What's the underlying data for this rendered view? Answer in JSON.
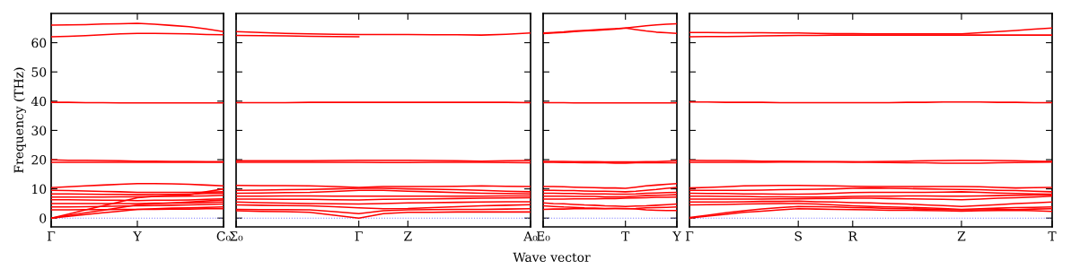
{
  "chart_data": [
    {
      "type": "line",
      "ylabel": "Frequency (THz)",
      "ylim": [
        -3,
        70
      ],
      "yticks": [
        0,
        10,
        20,
        30,
        40,
        50,
        60
      ],
      "legend": false,
      "grid": false,
      "categories": [
        "Γ",
        null,
        null,
        null,
        null,
        "Y",
        null,
        null,
        null,
        null,
        "C₀"
      ],
      "ref_lines": [
        {
          "axis": "y",
          "value": 0,
          "color": "#7777ff",
          "line_style": "dotted"
        }
      ],
      "series": [
        {
          "color": "#ff0000",
          "values": [
            66,
            66.1,
            66.2,
            66.4,
            66.5,
            66.6,
            66.3,
            65.9,
            65.5,
            64.7,
            63.8
          ]
        },
        {
          "color": "#ff0000",
          "values": [
            62,
            62.2,
            62.4,
            62.7,
            63,
            63.2,
            63.2,
            63.1,
            63,
            62.8,
            62.7
          ]
        },
        {
          "color": "#ff0000",
          "values": [
            39.6,
            39.6,
            39.5,
            39.5,
            39.4,
            39.4,
            39.4,
            39.4,
            39.4,
            39.4,
            39.4
          ]
        },
        {
          "color": "#ff0000",
          "values": [
            19.9,
            19.8,
            19.8,
            19.7,
            19.6,
            19.5,
            19.5,
            19.4,
            19.4,
            19.3,
            19.3
          ]
        },
        {
          "color": "#ff0000",
          "values": [
            19.1,
            19.1,
            19.1,
            19.1,
            19.1,
            19.1,
            19.1,
            19.1,
            19.1,
            19.1,
            19.1
          ]
        },
        {
          "color": "#ff0000",
          "values": [
            10.4,
            10.7,
            11,
            11.3,
            11.6,
            11.8,
            11.8,
            11.7,
            11.6,
            11.3,
            11
          ]
        },
        {
          "color": "#ff0000",
          "values": [
            9.5,
            9.4,
            9.3,
            9.1,
            9,
            8.8,
            8.8,
            8.8,
            8.8,
            8.9,
            9
          ]
        },
        {
          "color": "#ff0000",
          "values": [
            8.3,
            8.3,
            8.2,
            8.1,
            8.1,
            8,
            8.1,
            8.1,
            8.2,
            8.4,
            8.5
          ]
        },
        {
          "color": "#ff0000",
          "values": [
            7.2,
            7.2,
            7.2,
            7.2,
            7.3,
            7.3,
            7.4,
            7.4,
            7.5,
            7.6,
            7.8
          ]
        },
        {
          "color": "#ff0000",
          "values": [
            6.3,
            6.3,
            6.2,
            6.1,
            6.1,
            6,
            6.1,
            6.1,
            6.2,
            6.4,
            6.6
          ]
        },
        {
          "color": "#ff0000",
          "values": [
            5,
            5,
            5,
            5,
            5,
            5,
            5.1,
            5.1,
            5.2,
            5.4,
            5.5
          ]
        },
        {
          "color": "#ff0000",
          "values": [
            3.8,
            3.8,
            3.9,
            4,
            4.1,
            4.2,
            4.3,
            4.4,
            4.5,
            4.7,
            4.8
          ]
        },
        {
          "color": "#ff0000",
          "values": [
            2.8,
            2.8,
            2.9,
            2.9,
            3,
            3,
            3,
            3.1,
            3.1,
            3.2,
            3.2
          ]
        },
        {
          "color": "#ff0000",
          "values": [
            0,
            0.6,
            1.2,
            1.8,
            2.4,
            3,
            3.2,
            3.4,
            3.5,
            3.7,
            3.8
          ]
        },
        {
          "color": "#ff0000",
          "values": [
            0,
            0.9,
            1.8,
            2.7,
            3.6,
            4.5,
            4.9,
            5.2,
            5.5,
            5.9,
            6.2
          ]
        },
        {
          "color": "#ff0000",
          "values": [
            0,
            1.4,
            2.8,
            4.2,
            5.6,
            7,
            7.4,
            7.8,
            8,
            9,
            10
          ]
        }
      ]
    },
    {
      "type": "line",
      "xlabel": "Wave vector",
      "tick_labels": "x",
      "ylim": [
        -3,
        70
      ],
      "yticks": [
        0,
        10,
        20,
        30,
        40,
        50,
        60
      ],
      "legend": false,
      "grid": false,
      "categories": [
        "Σ₀",
        null,
        null,
        null,
        null,
        "Γ",
        null,
        "Z",
        null,
        null,
        null,
        null,
        "A₀"
      ],
      "ref_lines": [
        {
          "axis": "y",
          "value": 0,
          "color": "#7777ff",
          "line_style": "dotted"
        }
      ],
      "series": [
        {
          "color": "#ff0000",
          "values": [
            63.8,
            63.5,
            63.2,
            63,
            62.9,
            62.8,
            62.8,
            62.8,
            62.7,
            62.7,
            62.6,
            62.9,
            63.3
          ]
        },
        {
          "color": "#ff0000",
          "values": [
            62.5,
            62.4,
            62.3,
            62.2,
            62.1,
            62,
            null,
            null,
            null,
            null,
            null,
            null,
            null
          ]
        },
        {
          "color": "#ff0000",
          "values": [
            39.5,
            39.5,
            39.5,
            39.6,
            39.6,
            39.6,
            39.6,
            39.6,
            39.6,
            39.6,
            39.6,
            39.6,
            39.5
          ]
        },
        {
          "color": "#ff0000",
          "values": [
            19.6,
            19.6,
            19.6,
            19.6,
            19.7,
            19.8,
            19.8,
            19.8,
            19.7,
            19.6,
            19.5,
            19.6,
            19.7
          ]
        },
        {
          "color": "#ff0000",
          "values": [
            19.1,
            19.1,
            19.1,
            19.1,
            19.1,
            19.1,
            19,
            19,
            19.1,
            19.1,
            19.1,
            19,
            18.9
          ]
        },
        {
          "color": "#ff0000",
          "values": [
            11.2,
            11.1,
            11.1,
            11,
            10.8,
            10.5,
            10.8,
            10.8,
            10.8,
            10.9,
            11,
            10.9,
            10.8
          ]
        },
        {
          "color": "#ff0000",
          "values": [
            9.5,
            9.6,
            9.7,
            9.8,
            10,
            10.2,
            10.2,
            10,
            9.9,
            9.7,
            9.5,
            9.2,
            9
          ]
        },
        {
          "color": "#ff0000",
          "values": [
            8.5,
            8.6,
            8.7,
            8.8,
            9.1,
            9.5,
            9.5,
            9.2,
            9,
            8.7,
            8.5,
            8.4,
            8.3
          ]
        },
        {
          "color": "#ff0000",
          "values": [
            7.5,
            7.5,
            7.6,
            7.6,
            7.5,
            7.5,
            7.5,
            7.5,
            7.5,
            7.5,
            7.5,
            7.6,
            7.6
          ]
        },
        {
          "color": "#ff0000",
          "values": [
            6.5,
            6.5,
            6.4,
            6.4,
            6.3,
            6.2,
            6.4,
            6.5,
            6.6,
            6.7,
            6.8,
            6.9,
            7
          ]
        },
        {
          "color": "#ff0000",
          "values": [
            5.5,
            5.3,
            5.1,
            5,
            4.9,
            4.8,
            5,
            5.2,
            5.3,
            5.4,
            5.5,
            5.6,
            5.6
          ]
        },
        {
          "color": "#ff0000",
          "values": [
            4.5,
            4.4,
            4.3,
            4.2,
            3.9,
            3.5,
            3.2,
            3.3,
            3.6,
            3.9,
            4.2,
            4.4,
            4.6
          ]
        },
        {
          "color": "#ff0000",
          "values": [
            3,
            2.9,
            2.9,
            2.8,
            2.2,
            1.5,
            2.5,
            2.8,
            2.9,
            3,
            3,
            3.1,
            3.2
          ]
        },
        {
          "color": "#ff0000",
          "values": [
            2.5,
            2.3,
            2.2,
            2,
            1,
            0,
            1.5,
            2,
            2,
            2.1,
            2.1,
            2.1,
            2.1
          ]
        }
      ]
    },
    {
      "type": "line",
      "tick_labels": "x",
      "ylim": [
        -3,
        70
      ],
      "yticks": [
        0,
        10,
        20,
        30,
        40,
        50,
        60
      ],
      "legend": false,
      "grid": false,
      "categories": [
        "E₀",
        null,
        null,
        null,
        null,
        null,
        null,
        null,
        "T",
        null,
        null,
        null,
        null,
        "Y"
      ],
      "ref_lines": [
        {
          "axis": "y",
          "value": 0,
          "color": "#7777ff",
          "line_style": "dotted"
        }
      ],
      "series": [
        {
          "color": "#ff0000",
          "values": [
            63.3,
            63.5,
            63.7,
            64,
            64.2,
            64.4,
            64.6,
            64.8,
            65,
            65.4,
            65.8,
            66.1,
            66.3,
            66.5
          ]
        },
        {
          "color": "#ff0000",
          "values": [
            63.1,
            63.3,
            63.5,
            63.8,
            64,
            64.2,
            64.4,
            64.6,
            65,
            64.5,
            64,
            63.6,
            63.4,
            63.2
          ]
        },
        {
          "color": "#ff0000",
          "values": [
            39.5,
            39.5,
            39.5,
            39.4,
            39.4,
            39.4,
            39.4,
            39.4,
            39.4,
            39.4,
            39.4,
            39.4,
            39.4,
            39.4
          ]
        },
        {
          "color": "#ff0000",
          "values": [
            19.4,
            19.4,
            19.4,
            19.3,
            19.3,
            19.3,
            19.2,
            19.2,
            19.2,
            19.2,
            19.3,
            19.3,
            19.5,
            19.6
          ]
        },
        {
          "color": "#ff0000",
          "values": [
            19.1,
            19.1,
            19,
            19,
            18.9,
            18.9,
            18.9,
            18.8,
            18.8,
            18.9,
            18.9,
            19,
            18.9,
            18.9
          ]
        },
        {
          "color": "#ff0000",
          "values": [
            10.8,
            10.8,
            10.7,
            10.6,
            10.5,
            10.4,
            10.3,
            10.3,
            10.2,
            10.6,
            11,
            11.3,
            11.6,
            11.8
          ]
        },
        {
          "color": "#ff0000",
          "values": [
            9.5,
            9.5,
            9.4,
            9.4,
            9.3,
            9.2,
            9.2,
            9.1,
            9,
            9.2,
            9.5,
            9.8,
            10.2,
            10.5
          ]
        },
        {
          "color": "#ff0000",
          "values": [
            8.5,
            8.5,
            8.4,
            8.4,
            8.3,
            8.3,
            8.3,
            8.2,
            8.2,
            8.3,
            8.5,
            8.6,
            8.7,
            8.8
          ]
        },
        {
          "color": "#ff0000",
          "values": [
            7.5,
            7.5,
            7.5,
            7.4,
            7.4,
            7.4,
            7.3,
            7.3,
            7.3,
            7.5,
            7.7,
            7.8,
            7.9,
            8
          ]
        },
        {
          "color": "#ff0000",
          "values": [
            6.5,
            6.5,
            6.5,
            6.6,
            6.6,
            6.6,
            6.7,
            6.7,
            6.8,
            6.9,
            7,
            7.1,
            7.1,
            7.2
          ]
        },
        {
          "color": "#ff0000",
          "values": [
            5.2,
            5,
            4.9,
            4.7,
            4.5,
            4.4,
            4.2,
            4.1,
            4,
            4.1,
            4.2,
            4.4,
            4.6,
            4.8
          ]
        },
        {
          "color": "#ff0000",
          "values": [
            4.2,
            4,
            3.8,
            3.7,
            3.5,
            3.4,
            3.3,
            3.3,
            3.2,
            3.3,
            3.5,
            3.6,
            3.7,
            3.8
          ]
        },
        {
          "color": "#ff0000",
          "values": [
            3,
            3.1,
            3.1,
            3.2,
            3.2,
            3.2,
            3.2,
            3.3,
            3.3,
            3.1,
            2.8,
            2.7,
            2.6,
            2.6
          ]
        }
      ]
    },
    {
      "type": "line",
      "tick_labels": "x",
      "ylim": [
        -3,
        70
      ],
      "yticks": [
        0,
        10,
        20,
        30,
        40,
        50,
        60
      ],
      "legend": false,
      "grid": false,
      "categories": [
        "Γ",
        null,
        null,
        null,
        null,
        null,
        "S",
        null,
        null,
        "R",
        null,
        null,
        null,
        null,
        null,
        "Z",
        null,
        null,
        null,
        null,
        "T"
      ],
      "ref_lines": [
        {
          "axis": "y",
          "value": 0,
          "color": "#7777ff",
          "line_style": "dotted"
        }
      ],
      "series": [
        {
          "color": "#ff0000",
          "values": [
            63.5,
            63.5,
            63.4,
            63.4,
            63.4,
            63.3,
            63.3,
            63.2,
            63.1,
            63.1,
            63,
            63,
            63,
            63,
            63,
            63,
            63.4,
            63.8,
            64.2,
            64.6,
            65
          ]
        },
        {
          "color": "#ff0000",
          "values": [
            62,
            62.1,
            62.1,
            62.2,
            62.3,
            62.4,
            62.5,
            62.5,
            62.6,
            62.6,
            62.6,
            62.6,
            62.6,
            62.6,
            62.6,
            62.6,
            62.6,
            62.6,
            62.6,
            62.6,
            62.6
          ]
        },
        {
          "color": "#ff0000",
          "values": [
            39.7,
            39.7,
            39.6,
            39.6,
            39.6,
            39.5,
            39.5,
            39.5,
            39.5,
            39.5,
            39.5,
            39.5,
            39.6,
            39.6,
            39.7,
            39.7,
            39.7,
            39.6,
            39.6,
            39.5,
            39.5
          ]
        },
        {
          "color": "#ff0000",
          "values": [
            19.8,
            19.7,
            19.7,
            19.6,
            19.5,
            19.5,
            19.4,
            19.3,
            19.3,
            19.2,
            19.3,
            19.4,
            19.5,
            19.6,
            19.7,
            19.8,
            19.8,
            19.7,
            19.6,
            19.5,
            19.4
          ]
        },
        {
          "color": "#ff0000",
          "values": [
            19.1,
            19.1,
            19.1,
            19.1,
            19.1,
            19.2,
            19.2,
            19.2,
            19.2,
            19.2,
            19.1,
            19,
            18.9,
            18.9,
            18.8,
            18.8,
            18.8,
            18.9,
            19,
            19.1,
            19.2
          ]
        },
        {
          "color": "#ff0000",
          "values": [
            10.3,
            10.5,
            10.7,
            11,
            11.1,
            11.2,
            11.2,
            11.1,
            11,
            10.9,
            10.8,
            10.8,
            10.8,
            10.8,
            10.8,
            10.8,
            10.7,
            10.5,
            10.3,
            10.4,
            10.5
          ]
        },
        {
          "color": "#ff0000",
          "values": [
            9.5,
            9.5,
            9.5,
            9.5,
            9.6,
            9.7,
            9.8,
            9.9,
            10,
            10.2,
            10.3,
            10.2,
            10.1,
            10,
            9.9,
            9.8,
            9.7,
            9.5,
            9.4,
            9.2,
            9
          ]
        },
        {
          "color": "#ff0000",
          "values": [
            8.5,
            8.4,
            8.4,
            8.3,
            8.3,
            8.2,
            8.2,
            8.3,
            8.5,
            8.7,
            8.8,
            8.8,
            8.8,
            8.8,
            8.9,
            9,
            8.8,
            8.6,
            8.4,
            8.3,
            8.2
          ]
        },
        {
          "color": "#ff0000",
          "values": [
            7.5,
            7.5,
            7.4,
            7.4,
            7.3,
            7.3,
            7.2,
            7.2,
            7.3,
            7.4,
            7.5,
            7.5,
            7.6,
            7.6,
            7.5,
            7.5,
            7.6,
            7.7,
            7.8,
            7.9,
            8
          ]
        },
        {
          "color": "#ff0000",
          "values": [
            6.5,
            6.5,
            6.5,
            6.5,
            6.5,
            6.6,
            6.6,
            6.7,
            6.7,
            6.8,
            6.8,
            6.7,
            6.6,
            6.5,
            6.4,
            6.3,
            6.5,
            6.8,
            7,
            7.2,
            7.5
          ]
        },
        {
          "color": "#ff0000",
          "values": [
            5.5,
            5.5,
            5.5,
            5.6,
            5.7,
            5.7,
            5.8,
            5.6,
            5.5,
            5.3,
            5.2,
            5,
            4.8,
            4.5,
            4.3,
            4,
            4.3,
            4.6,
            5,
            5.2,
            5.5
          ]
        },
        {
          "color": "#ff0000",
          "values": [
            4.5,
            4.6,
            4.7,
            4.8,
            4.9,
            5,
            5,
            4.8,
            4.5,
            4.2,
            4,
            3.8,
            3.7,
            3.5,
            3.3,
            3,
            3.2,
            3.4,
            3.6,
            3.7,
            3.8
          ]
        },
        {
          "color": "#ff0000",
          "values": [
            0,
            0.7,
            1.3,
            2,
            2.4,
            2.8,
            3.2,
            3.1,
            3,
            2.9,
            2.8,
            2.7,
            2.7,
            2.6,
            2.5,
            2.4,
            2.5,
            2.6,
            2.7,
            2.5,
            2.3
          ]
        },
        {
          "color": "#ff0000",
          "values": [
            0.2,
            1,
            1.8,
            2.5,
            3.1,
            3.6,
            4,
            3.9,
            3.8,
            3.6,
            3.5,
            3.3,
            3.2,
            3.1,
            2.9,
            2.8,
            2.8,
            2.9,
            2.9,
            3.1,
            3.2
          ]
        }
      ]
    }
  ]
}
